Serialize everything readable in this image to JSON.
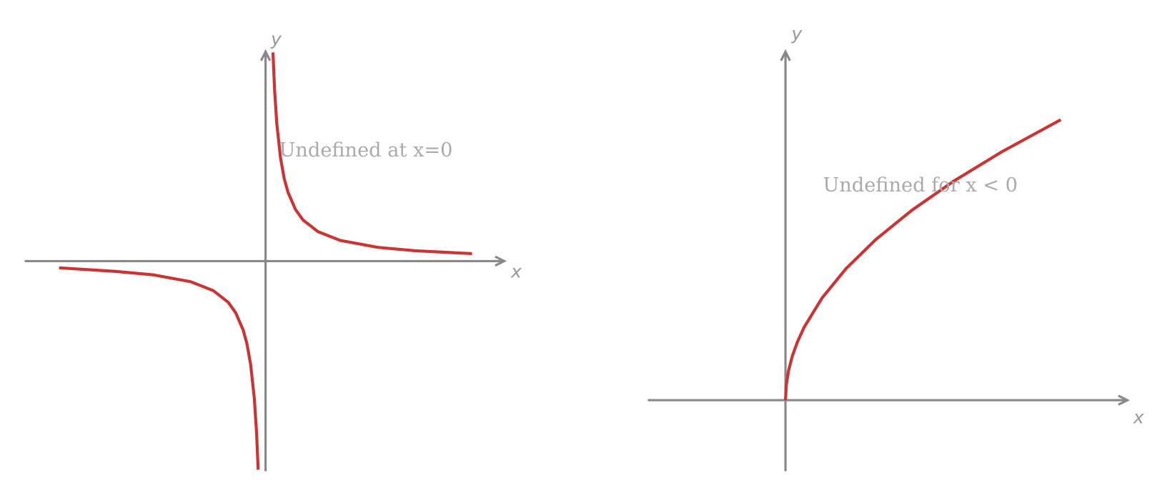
{
  "left": {
    "y_label": "y",
    "x_label": "x",
    "annotation": "Undefined at x=0"
  },
  "right": {
    "y_label": "y",
    "x_label": "x",
    "annotation": "Undefined for x < 0"
  }
}
